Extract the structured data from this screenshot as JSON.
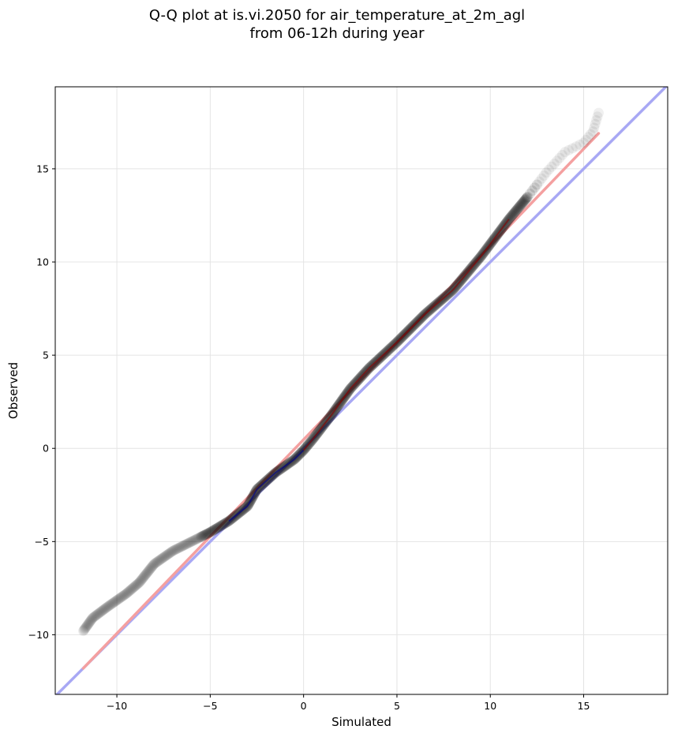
{
  "chart_data": {
    "type": "scatter",
    "title_line1": "Q-Q plot at is.vi.2050 for air_temperature_at_2m_agl",
    "title_line2": "from 06-12h during year",
    "xlabel": "Simulated",
    "ylabel": "Observed",
    "xlim": [
      -13.3,
      19.5
    ],
    "ylim": [
      -13.2,
      19.4
    ],
    "xticks": [
      -10,
      -5,
      0,
      5,
      10,
      15
    ],
    "yticks": [
      -10,
      -5,
      0,
      5,
      10,
      15
    ],
    "xtick_labels": [
      "−10",
      "−5",
      "0",
      "5",
      "10",
      "15"
    ],
    "ytick_labels": [
      "−10",
      "−5",
      "0",
      "5",
      "10",
      "15"
    ],
    "grid": true,
    "qq_anchor_points": [
      {
        "x": -11.8,
        "y": -9.8
      },
      {
        "x": -11.3,
        "y": -9.1
      },
      {
        "x": -10.5,
        "y": -8.5
      },
      {
        "x": -9.5,
        "y": -7.8
      },
      {
        "x": -8.8,
        "y": -7.2
      },
      {
        "x": -8.0,
        "y": -6.2
      },
      {
        "x": -7.0,
        "y": -5.5
      },
      {
        "x": -6.0,
        "y": -5.0
      },
      {
        "x": -5.0,
        "y": -4.5
      },
      {
        "x": -4.0,
        "y": -3.9
      },
      {
        "x": -3.0,
        "y": -3.1
      },
      {
        "x": -2.5,
        "y": -2.2
      },
      {
        "x": -1.5,
        "y": -1.3
      },
      {
        "x": -0.5,
        "y": -0.6
      },
      {
        "x": 0.0,
        "y": -0.1
      },
      {
        "x": 0.5,
        "y": 0.5
      },
      {
        "x": 1.5,
        "y": 1.8
      },
      {
        "x": 2.5,
        "y": 3.2
      },
      {
        "x": 3.5,
        "y": 4.3
      },
      {
        "x": 5.0,
        "y": 5.7
      },
      {
        "x": 6.5,
        "y": 7.2
      },
      {
        "x": 8.0,
        "y": 8.5
      },
      {
        "x": 9.5,
        "y": 10.3
      },
      {
        "x": 11.0,
        "y": 12.3
      },
      {
        "x": 12.0,
        "y": 13.5
      },
      {
        "x": 13.0,
        "y": 14.8
      },
      {
        "x": 14.0,
        "y": 15.9
      },
      {
        "x": 15.0,
        "y": 16.4
      },
      {
        "x": 15.5,
        "y": 17.0
      },
      {
        "x": 15.8,
        "y": 18.0
      }
    ],
    "fit_line": {
      "x": [
        -11.8,
        15.8
      ],
      "y": [
        -11.8,
        16.9
      ],
      "color": "#f4a0a0"
    },
    "identity_line": {
      "x": [
        -13.3,
        19.5
      ],
      "y": [
        -13.3,
        19.5
      ],
      "color": "#a8a8f4"
    },
    "colors": {
      "points": "#000000",
      "point_inner_fit": "#8b0000",
      "point_inner_identity": "#00008b"
    }
  }
}
